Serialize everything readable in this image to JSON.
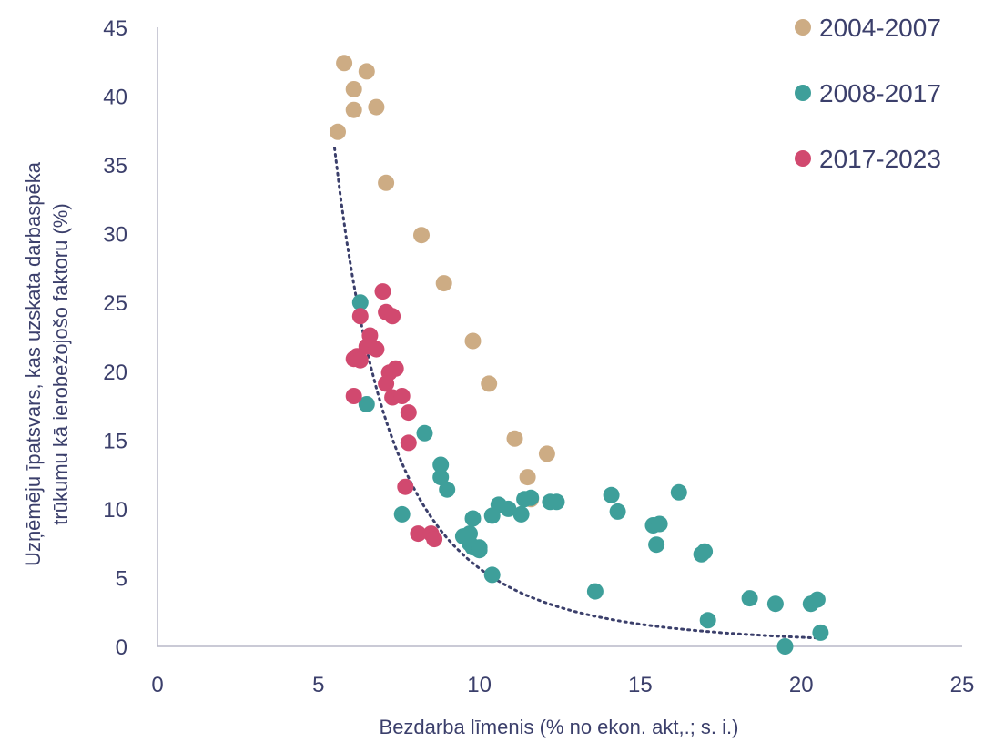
{
  "chart_data": {
    "type": "scatter",
    "title": "",
    "xlabel": "Bezdarba līmenis (% no ekon. akt,.; s. i.)",
    "ylabel_lines": [
      "Uzņēmēju īpatsvars, kas uzskata darbaspēka",
      "trūkumu kā ierobežojošo faktoru (%)"
    ],
    "xlim": [
      0,
      25
    ],
    "ylim": [
      0,
      45
    ],
    "x_ticks": [
      "0",
      "5",
      "10",
      "15",
      "20",
      "25"
    ],
    "y_ticks": [
      "0",
      "5",
      "10",
      "15",
      "20",
      "25",
      "30",
      "35",
      "40",
      "45"
    ],
    "grid": false,
    "legend_position": "top-right",
    "series": [
      {
        "name": "2004-2007",
        "color": "#cdac84",
        "points": [
          [
            5.8,
            42.4
          ],
          [
            6.5,
            41.8
          ],
          [
            6.1,
            40.5
          ],
          [
            6.1,
            39.0
          ],
          [
            6.8,
            39.2
          ],
          [
            5.6,
            37.4
          ],
          [
            7.1,
            33.7
          ],
          [
            8.2,
            29.9
          ],
          [
            8.9,
            26.4
          ],
          [
            9.8,
            22.2
          ],
          [
            10.3,
            19.1
          ],
          [
            11.1,
            15.1
          ],
          [
            12.1,
            14.0
          ],
          [
            11.5,
            12.3
          ],
          [
            11.6,
            10.7
          ]
        ]
      },
      {
        "name": "2008-2017",
        "color": "#3e9f9a",
        "points": [
          [
            6.3,
            25.0
          ],
          [
            6.5,
            17.6
          ],
          [
            8.3,
            15.5
          ],
          [
            8.8,
            13.2
          ],
          [
            8.8,
            12.3
          ],
          [
            9.0,
            11.4
          ],
          [
            7.6,
            9.6
          ],
          [
            9.5,
            8.0
          ],
          [
            9.7,
            8.2
          ],
          [
            9.7,
            7.5
          ],
          [
            9.8,
            7.2
          ],
          [
            10.0,
            7.2
          ],
          [
            10.0,
            7.0
          ],
          [
            9.8,
            9.3
          ],
          [
            10.4,
            9.5
          ],
          [
            10.6,
            10.3
          ],
          [
            10.9,
            10.0
          ],
          [
            11.3,
            9.6
          ],
          [
            11.4,
            10.7
          ],
          [
            11.6,
            10.8
          ],
          [
            12.2,
            10.5
          ],
          [
            12.4,
            10.5
          ],
          [
            10.4,
            5.2
          ],
          [
            13.6,
            4.0
          ],
          [
            14.1,
            11.0
          ],
          [
            14.3,
            9.8
          ],
          [
            15.4,
            8.8
          ],
          [
            15.6,
            8.9
          ],
          [
            15.5,
            7.4
          ],
          [
            16.2,
            11.2
          ],
          [
            16.9,
            6.7
          ],
          [
            17.0,
            6.9
          ],
          [
            17.1,
            1.9
          ],
          [
            18.4,
            3.5
          ],
          [
            19.2,
            3.1
          ],
          [
            19.5,
            0.0
          ],
          [
            20.3,
            3.1
          ],
          [
            20.5,
            3.4
          ],
          [
            20.6,
            1.0
          ]
        ]
      },
      {
        "name": "2017-2023",
        "color": "#d1496f",
        "points": [
          [
            7.0,
            25.8
          ],
          [
            7.1,
            24.3
          ],
          [
            7.3,
            24.0
          ],
          [
            6.3,
            24.0
          ],
          [
            6.6,
            22.6
          ],
          [
            6.5,
            21.8
          ],
          [
            6.8,
            21.6
          ],
          [
            6.2,
            21.1
          ],
          [
            6.1,
            20.9
          ],
          [
            6.3,
            20.8
          ],
          [
            7.4,
            20.2
          ],
          [
            7.2,
            19.9
          ],
          [
            7.1,
            19.1
          ],
          [
            6.1,
            18.2
          ],
          [
            7.3,
            18.1
          ],
          [
            7.6,
            18.2
          ],
          [
            7.8,
            17.0
          ],
          [
            7.8,
            14.8
          ],
          [
            7.7,
            11.6
          ],
          [
            8.1,
            8.2
          ],
          [
            8.5,
            8.2
          ],
          [
            8.6,
            7.8
          ]
        ]
      }
    ],
    "trendline": {
      "style": "dotted",
      "color": "#3b3f6b",
      "type": "power",
      "x_range": [
        5.5,
        20.5
      ],
      "a": 7148.6,
      "b": -3.1
    }
  }
}
